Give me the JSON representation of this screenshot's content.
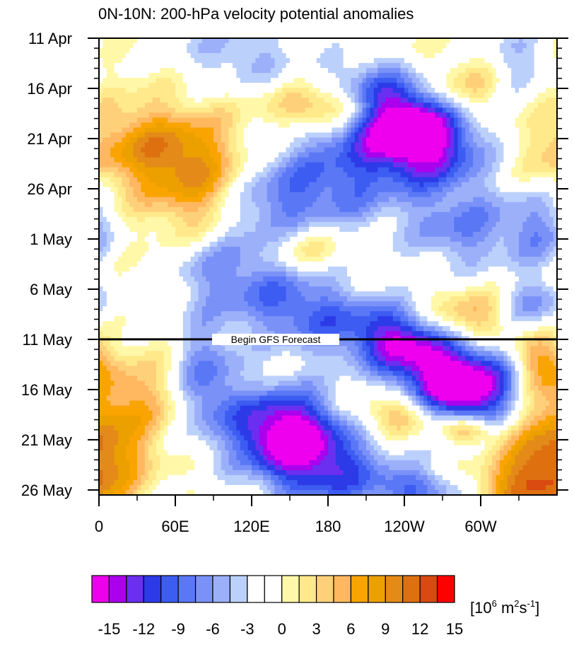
{
  "chart_data": {
    "type": "heatmap",
    "title": "0N-10N: 200-hPa velocity potential anomalies",
    "xlabel": "",
    "ylabel": "",
    "x_tick_labels": [
      "0",
      "60E",
      "120E",
      "180",
      "120W",
      "60W"
    ],
    "x_tick_lon": [
      0,
      60,
      120,
      180,
      240,
      300
    ],
    "x_range": [
      0,
      360
    ],
    "y_tick_labels": [
      "11 Apr",
      "16 Apr",
      "21 Apr",
      "26 Apr",
      "1 May",
      "6 May",
      "11 May",
      "16 May",
      "21 May",
      "26 May"
    ],
    "y_tick_day": [
      0,
      5,
      10,
      15,
      20,
      25,
      30,
      35,
      40,
      45
    ],
    "y_range": [
      0,
      45.5
    ],
    "annotation": {
      "text": "Begin GFS Forecast",
      "day": 30
    },
    "colorbar": {
      "levels": [
        -15,
        -12,
        -9,
        -6,
        -3,
        0,
        3,
        6,
        9,
        12,
        15
      ],
      "label_values": [
        "-15",
        "-12",
        "-9",
        "-6",
        "-3",
        "0",
        "3",
        "6",
        "9",
        "12",
        "15"
      ],
      "units_base": "[10",
      "units_exp1": "6",
      "units_mid": " m",
      "units_exp2": "2",
      "units_s": "s",
      "units_exp3": "-1",
      "units_close": "]",
      "colors": [
        "#ee00ee",
        "#aa00ee",
        "#6a2ff0",
        "#2c3ae8",
        "#3c5cf2",
        "#5a78f6",
        "#7a92f8",
        "#9cb0fa",
        "#bcd0fc",
        "#ffffff",
        "#ffffff",
        "#fff8a8",
        "#ffe98a",
        "#ffd07a",
        "#ffb860",
        "#f9a400",
        "#eca000",
        "#e38a18",
        "#de7010",
        "#d84a10",
        "#ff0000"
      ]
    },
    "features": [
      {
        "lon": 110,
        "day": 1.5,
        "amp": -5,
        "sx": 35,
        "sy": 2.5
      },
      {
        "lon": 330,
        "day": 3.5,
        "amp": -6,
        "sx": 20,
        "sy": 3
      },
      {
        "lon": 240,
        "day": 8,
        "amp": -14,
        "sx": 25,
        "sy": 3
      },
      {
        "lon": 265,
        "day": 11,
        "amp": -11,
        "sx": 30,
        "sy": 3
      },
      {
        "lon": 210,
        "day": 6,
        "amp": -7,
        "sx": 25,
        "sy": 3
      },
      {
        "lon": 190,
        "day": 14,
        "amp": -8,
        "sx": 35,
        "sy": 4
      },
      {
        "lon": 130,
        "day": 17,
        "amp": -7,
        "sx": 30,
        "sy": 4
      },
      {
        "lon": 285,
        "day": 19,
        "amp": -7,
        "sx": 30,
        "sy": 3
      },
      {
        "lon": 345,
        "day": 19,
        "amp": -6,
        "sx": 20,
        "sy": 3
      },
      {
        "lon": 90,
        "day": 23,
        "amp": -5,
        "sx": 30,
        "sy": 3
      },
      {
        "lon": 150,
        "day": 26,
        "amp": -7,
        "sx": 35,
        "sy": 3
      },
      {
        "lon": 200,
        "day": 29,
        "amp": -6,
        "sx": 40,
        "sy": 2.5
      },
      {
        "lon": 340,
        "day": 27,
        "amp": -7,
        "sx": 20,
        "sy": 2
      },
      {
        "lon": 240,
        "day": 30.5,
        "amp": -11,
        "sx": 25,
        "sy": 2.5
      },
      {
        "lon": 275,
        "day": 34.5,
        "amp": -15,
        "sx": 25,
        "sy": 3
      },
      {
        "lon": 310,
        "day": 35,
        "amp": -9,
        "sx": 25,
        "sy": 3
      },
      {
        "lon": 85,
        "day": 34,
        "amp": -8,
        "sx": 18,
        "sy": 4
      },
      {
        "lon": 145,
        "day": 39,
        "amp": -16,
        "sx": 30,
        "sy": 3
      },
      {
        "lon": 180,
        "day": 43,
        "amp": -10,
        "sx": 35,
        "sy": 3
      },
      {
        "lon": 250,
        "day": 45,
        "amp": -8,
        "sx": 25,
        "sy": 1.5
      },
      {
        "lon": 185,
        "day": 7,
        "amp": 9,
        "sx": 30,
        "sy": 1.5
      },
      {
        "lon": 40,
        "day": 11,
        "amp": 8,
        "sx": 40,
        "sy": 3
      },
      {
        "lon": 80,
        "day": 15,
        "amp": 7,
        "sx": 30,
        "sy": 4
      },
      {
        "lon": 290,
        "day": 5,
        "amp": 5,
        "sx": 45,
        "sy": 2
      },
      {
        "lon": 160,
        "day": 21,
        "amp": 6,
        "sx": 25,
        "sy": 2
      },
      {
        "lon": 290,
        "day": 28,
        "amp": 7,
        "sx": 30,
        "sy": 2
      },
      {
        "lon": 345,
        "day": 32,
        "amp": 7,
        "sx": 15,
        "sy": 2
      },
      {
        "lon": 20,
        "day": 36,
        "amp": 6,
        "sx": 30,
        "sy": 3
      },
      {
        "lon": 240,
        "day": 37.5,
        "amp": 7,
        "sx": 25,
        "sy": 1.5
      },
      {
        "lon": 290,
        "day": 39,
        "amp": 9,
        "sx": 15,
        "sy": 1
      },
      {
        "lon": 10,
        "day": 42,
        "amp": 7,
        "sx": 20,
        "sy": 3
      },
      {
        "lon": 340,
        "day": 42,
        "amp": 7,
        "sx": 20,
        "sy": 4
      },
      {
        "lon": 330,
        "day": 45,
        "amp": 6,
        "sx": 25,
        "sy": 2
      }
    ]
  }
}
